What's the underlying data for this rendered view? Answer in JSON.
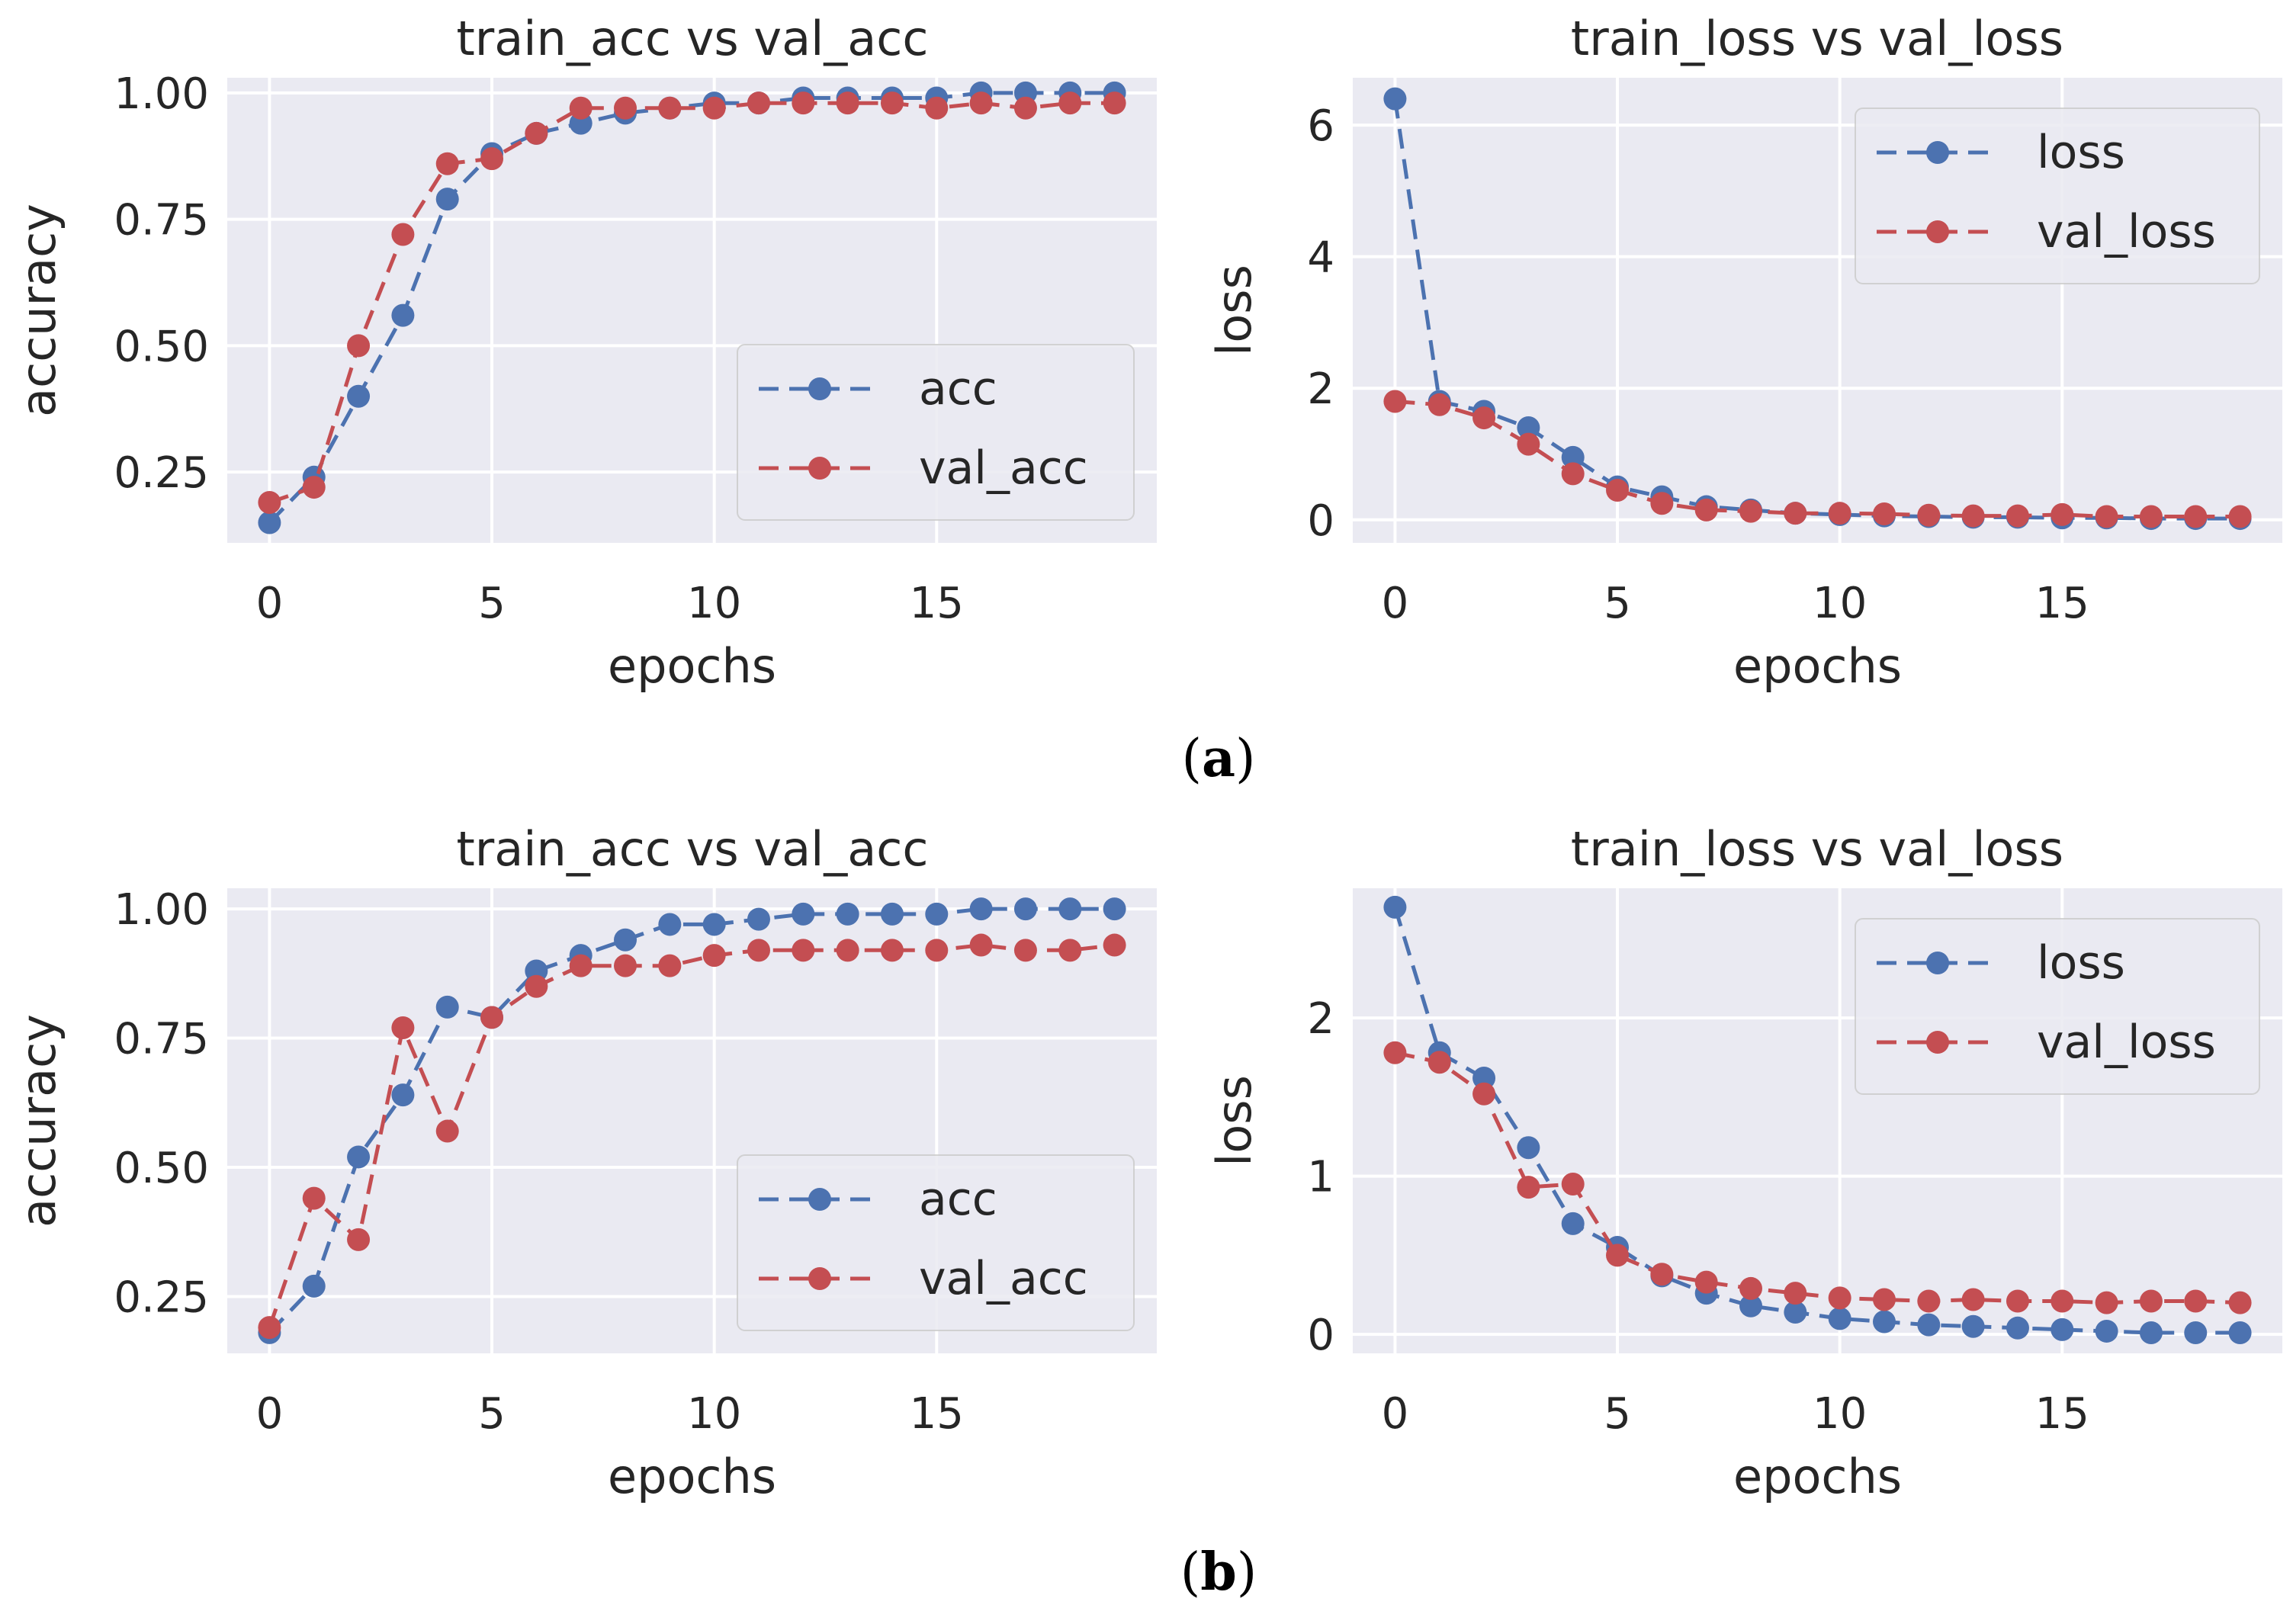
{
  "colors": {
    "acc": "#4c72b0",
    "val": "#c44e52"
  },
  "panel_labels": [
    {
      "open": "(",
      "letter": "a",
      "close": ")"
    },
    {
      "open": "(",
      "letter": "b",
      "close": ")"
    }
  ],
  "chart_data": [
    {
      "type": "line",
      "title": "train_acc vs val_acc",
      "xlabel": "epochs",
      "ylabel": "accuracy",
      "xlim": [
        -0.95,
        19.95
      ],
      "ylim": [
        0.11,
        1.03
      ],
      "xticks": [
        0,
        5,
        10,
        15
      ],
      "xtick_labels": [
        "0",
        "5",
        "10",
        "15"
      ],
      "yticks": [
        0.25,
        0.5,
        0.75,
        1.0
      ],
      "ytick_labels": [
        "0.25",
        "0.50",
        "0.75",
        "1.00"
      ],
      "legend_loc": "lower-right",
      "x": [
        0,
        1,
        2,
        3,
        4,
        5,
        6,
        7,
        8,
        9,
        10,
        11,
        12,
        13,
        14,
        15,
        16,
        17,
        18,
        19
      ],
      "series": [
        {
          "name": "acc",
          "color_key": "acc",
          "values": [
            0.15,
            0.24,
            0.4,
            0.56,
            0.79,
            0.88,
            0.92,
            0.94,
            0.96,
            0.97,
            0.98,
            0.98,
            0.99,
            0.99,
            0.99,
            0.99,
            1.0,
            1.0,
            1.0,
            1.0
          ]
        },
        {
          "name": "val_acc",
          "color_key": "val",
          "values": [
            0.19,
            0.22,
            0.5,
            0.72,
            0.86,
            0.87,
            0.92,
            0.97,
            0.97,
            0.97,
            0.97,
            0.98,
            0.98,
            0.98,
            0.98,
            0.97,
            0.98,
            0.97,
            0.98,
            0.98
          ]
        }
      ]
    },
    {
      "type": "line",
      "title": "train_loss vs val_loss",
      "xlabel": "epochs",
      "ylabel": "loss",
      "xlim": [
        -0.95,
        19.95
      ],
      "ylim": [
        -0.35,
        6.72
      ],
      "xticks": [
        0,
        5,
        10,
        15
      ],
      "xtick_labels": [
        "0",
        "5",
        "10",
        "15"
      ],
      "yticks": [
        0,
        2,
        4,
        6
      ],
      "ytick_labels": [
        "0",
        "2",
        "4",
        "6"
      ],
      "legend_loc": "upper-right",
      "x": [
        0,
        1,
        2,
        3,
        4,
        5,
        6,
        7,
        8,
        9,
        10,
        11,
        12,
        13,
        14,
        15,
        16,
        17,
        18,
        19
      ],
      "series": [
        {
          "name": "loss",
          "color_key": "acc",
          "values": [
            6.4,
            1.8,
            1.65,
            1.4,
            0.95,
            0.5,
            0.35,
            0.2,
            0.15,
            0.1,
            0.08,
            0.06,
            0.05,
            0.04,
            0.04,
            0.03,
            0.03,
            0.02,
            0.02,
            0.02
          ]
        },
        {
          "name": "val_loss",
          "color_key": "val",
          "values": [
            1.8,
            1.75,
            1.55,
            1.15,
            0.7,
            0.45,
            0.25,
            0.15,
            0.13,
            0.1,
            0.1,
            0.09,
            0.07,
            0.06,
            0.06,
            0.08,
            0.05,
            0.05,
            0.05,
            0.05
          ]
        }
      ]
    },
    {
      "type": "line",
      "title": "train_acc vs val_acc",
      "xlabel": "epochs",
      "ylabel": "accuracy",
      "xlim": [
        -0.95,
        19.95
      ],
      "ylim": [
        0.14,
        1.04
      ],
      "xticks": [
        0,
        5,
        10,
        15
      ],
      "xtick_labels": [
        "0",
        "5",
        "10",
        "15"
      ],
      "yticks": [
        0.25,
        0.5,
        0.75,
        1.0
      ],
      "ytick_labels": [
        "0.25",
        "0.50",
        "0.75",
        "1.00"
      ],
      "legend_loc": "lower-right",
      "x": [
        0,
        1,
        2,
        3,
        4,
        5,
        6,
        7,
        8,
        9,
        10,
        11,
        12,
        13,
        14,
        15,
        16,
        17,
        18,
        19
      ],
      "series": [
        {
          "name": "acc",
          "color_key": "acc",
          "values": [
            0.18,
            0.27,
            0.52,
            0.64,
            0.81,
            0.79,
            0.88,
            0.91,
            0.94,
            0.97,
            0.97,
            0.98,
            0.99,
            0.99,
            0.99,
            0.99,
            1.0,
            1.0,
            1.0,
            1.0
          ]
        },
        {
          "name": "val_acc",
          "color_key": "val",
          "values": [
            0.19,
            0.44,
            0.36,
            0.77,
            0.57,
            0.79,
            0.85,
            0.89,
            0.89,
            0.89,
            0.91,
            0.92,
            0.92,
            0.92,
            0.92,
            0.92,
            0.93,
            0.92,
            0.92,
            0.93
          ]
        }
      ]
    },
    {
      "type": "line",
      "title": "train_loss vs val_loss",
      "xlabel": "epochs",
      "ylabel": "loss",
      "xlim": [
        -0.95,
        19.95
      ],
      "ylim": [
        -0.12,
        2.82
      ],
      "xticks": [
        0,
        5,
        10,
        15
      ],
      "xtick_labels": [
        "0",
        "5",
        "10",
        "15"
      ],
      "yticks": [
        0,
        1,
        2
      ],
      "ytick_labels": [
        "0",
        "1",
        "2"
      ],
      "legend_loc": "upper-right",
      "x": [
        0,
        1,
        2,
        3,
        4,
        5,
        6,
        7,
        8,
        9,
        10,
        11,
        12,
        13,
        14,
        15,
        16,
        17,
        18,
        19
      ],
      "series": [
        {
          "name": "loss",
          "color_key": "acc",
          "values": [
            2.7,
            1.78,
            1.62,
            1.18,
            0.7,
            0.55,
            0.37,
            0.26,
            0.18,
            0.14,
            0.1,
            0.08,
            0.06,
            0.05,
            0.04,
            0.03,
            0.02,
            0.01,
            0.01,
            0.01
          ]
        },
        {
          "name": "val_loss",
          "color_key": "val",
          "values": [
            1.78,
            1.72,
            1.52,
            0.93,
            0.95,
            0.5,
            0.38,
            0.33,
            0.29,
            0.26,
            0.23,
            0.22,
            0.21,
            0.22,
            0.21,
            0.21,
            0.2,
            0.21,
            0.21,
            0.2
          ]
        }
      ]
    }
  ]
}
